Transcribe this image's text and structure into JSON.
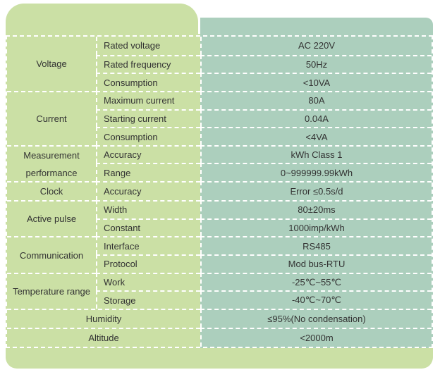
{
  "colors": {
    "panel_green": "#cbe0a5",
    "value_teal": "#accfbd",
    "text": "#333333",
    "divider": "#ffffff"
  },
  "table": {
    "groups": [
      {
        "category": "Voltage",
        "rows": [
          {
            "param": "Rated voltage",
            "value": "AC 220V"
          },
          {
            "param": "Rated frequency",
            "value": "50Hz"
          },
          {
            "param": "Consumption",
            "value": "<10VA"
          }
        ]
      },
      {
        "category": "Current",
        "rows": [
          {
            "param": "Maximum current",
            "value": "80A"
          },
          {
            "param": "Starting current",
            "value": "0.04A"
          },
          {
            "param": "Consumption",
            "value": "<4VA"
          }
        ]
      },
      {
        "category": "Measurement performance",
        "rows": [
          {
            "param": "Accuracy",
            "value": "kWh Class 1"
          },
          {
            "param": "Range",
            "value": "0~999999.99kWh"
          }
        ]
      },
      {
        "category": "Clock",
        "rows": [
          {
            "param": "Accuracy",
            "value": "Error ≤0.5s/d"
          }
        ]
      },
      {
        "category": "Active pulse",
        "rows": [
          {
            "param": "Width",
            "value": "80±20ms"
          },
          {
            "param": "Constant",
            "value": "1000imp/kWh"
          }
        ]
      },
      {
        "category": "Communication",
        "rows": [
          {
            "param": "Interface",
            "value": "RS485"
          },
          {
            "param": "Protocol",
            "value": "Mod bus-RTU"
          }
        ]
      },
      {
        "category": "Temperature range",
        "rows": [
          {
            "param": "Work",
            "value": "-25℃~55℃"
          },
          {
            "param": "Storage",
            "value": "-40℃~70℃"
          }
        ]
      }
    ],
    "full_rows": [
      {
        "label": "Humidity",
        "value": "≤95%(No condensation)"
      },
      {
        "label": "Altitude",
        "value": "<2000m"
      }
    ]
  }
}
